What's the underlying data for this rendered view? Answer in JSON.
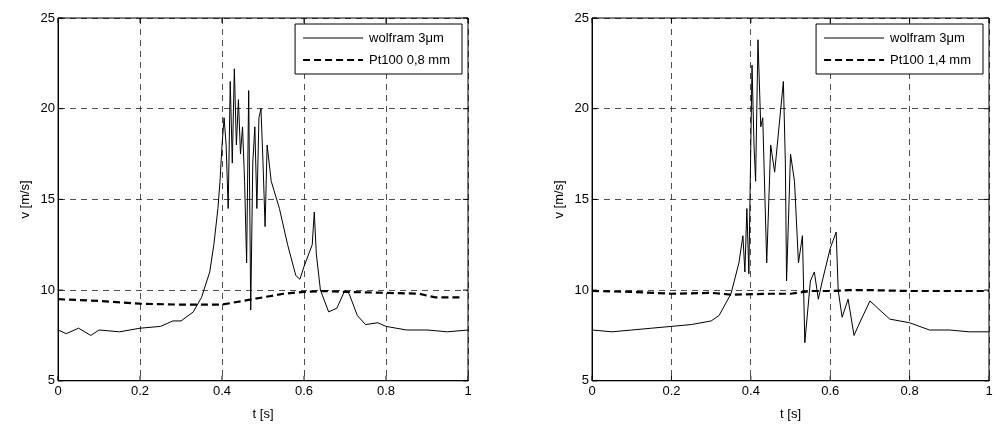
{
  "chart_data": [
    {
      "type": "line",
      "xlabel": "t [s]",
      "ylabel": "v [m/s]",
      "xlim": [
        0,
        1
      ],
      "ylim": [
        5,
        25
      ],
      "xticks": [
        0,
        0.2,
        0.4,
        0.6,
        0.8,
        1
      ],
      "yticks": [
        5,
        10,
        15,
        20,
        25
      ],
      "grid": true,
      "legend": "top right",
      "marker": "none",
      "series": [
        {
          "name": "wolfram 3μm",
          "color": "#000000",
          "line_style": "solid",
          "x": [
            0,
            0.02,
            0.05,
            0.08,
            0.1,
            0.15,
            0.2,
            0.25,
            0.28,
            0.3,
            0.33,
            0.35,
            0.37,
            0.38,
            0.39,
            0.395,
            0.4,
            0.405,
            0.41,
            0.415,
            0.42,
            0.425,
            0.43,
            0.435,
            0.44,
            0.445,
            0.45,
            0.455,
            0.46,
            0.465,
            0.47,
            0.475,
            0.48,
            0.485,
            0.49,
            0.495,
            0.5,
            0.505,
            0.51,
            0.52,
            0.54,
            0.56,
            0.58,
            0.59,
            0.6,
            0.62,
            0.625,
            0.63,
            0.64,
            0.66,
            0.68,
            0.7,
            0.71,
            0.73,
            0.75,
            0.78,
            0.8,
            0.85,
            0.9,
            0.95,
            1
          ],
          "values": [
            7.8,
            7.6,
            7.9,
            7.5,
            7.8,
            7.7,
            7.9,
            8,
            8.3,
            8.3,
            8.8,
            9.6,
            11,
            12.5,
            14.5,
            16,
            18,
            19.5,
            18,
            14.5,
            21.5,
            17,
            22.2,
            18,
            20.5,
            17.5,
            19,
            16,
            11.5,
            21,
            8.9,
            17,
            19,
            14.5,
            19.5,
            20,
            17,
            13.5,
            18,
            16,
            14.5,
            12.5,
            10.8,
            10.6,
            11.3,
            12.5,
            14.3,
            12,
            10,
            8.8,
            9,
            10,
            9.8,
            8.6,
            8.1,
            8.2,
            8,
            7.8,
            7.8,
            7.7,
            7.8
          ]
        },
        {
          "name": "Pt100 0,8 mm",
          "color": "#000000",
          "line_style": "dashed",
          "x": [
            0,
            0.1,
            0.2,
            0.3,
            0.4,
            0.45,
            0.5,
            0.55,
            0.6,
            0.65,
            0.7,
            0.8,
            0.88,
            0.92,
            0.98
          ],
          "values": [
            9.5,
            9.4,
            9.25,
            9.2,
            9.2,
            9.4,
            9.6,
            9.8,
            9.9,
            9.95,
            9.9,
            9.85,
            9.8,
            9.6,
            9.6
          ]
        }
      ]
    },
    {
      "type": "line",
      "xlabel": "t [s]",
      "ylabel": "v [m/s]",
      "xlim": [
        0,
        1
      ],
      "ylim": [
        5,
        25
      ],
      "xticks": [
        0,
        0.2,
        0.4,
        0.6,
        0.8,
        1
      ],
      "yticks": [
        5,
        10,
        15,
        20,
        25
      ],
      "grid": true,
      "legend": "top right",
      "marker": "none",
      "series": [
        {
          "name": "wolfram 3μm",
          "color": "#000000",
          "line_style": "solid",
          "x": [
            0,
            0.05,
            0.1,
            0.15,
            0.2,
            0.25,
            0.3,
            0.32,
            0.35,
            0.37,
            0.38,
            0.385,
            0.39,
            0.395,
            0.403,
            0.408,
            0.412,
            0.418,
            0.425,
            0.43,
            0.44,
            0.45,
            0.46,
            0.482,
            0.487,
            0.49,
            0.5,
            0.51,
            0.52,
            0.53,
            0.536,
            0.55,
            0.56,
            0.57,
            0.58,
            0.6,
            0.615,
            0.62,
            0.63,
            0.645,
            0.66,
            0.67,
            0.7,
            0.72,
            0.75,
            0.8,
            0.85,
            0.9,
            0.95,
            1
          ],
          "values": [
            7.8,
            7.7,
            7.8,
            7.9,
            8,
            8.1,
            8.3,
            8.6,
            9.8,
            11.5,
            13,
            11,
            14.5,
            10.9,
            22.4,
            18,
            16,
            23.8,
            19,
            19.5,
            11.5,
            18,
            16.5,
            21.5,
            17,
            10.5,
            17.5,
            16,
            11.5,
            13,
            7.1,
            10.5,
            11,
            9.5,
            10.5,
            12.3,
            13.2,
            10,
            8.5,
            9.5,
            7.5,
            8,
            9.4,
            9,
            8.4,
            8.2,
            7.8,
            7.8,
            7.7,
            7.7
          ]
        },
        {
          "name": "Pt100 1,4 mm",
          "color": "#000000",
          "line_style": "dashed",
          "x": [
            0,
            0.1,
            0.2,
            0.3,
            0.35,
            0.45,
            0.5,
            0.55,
            0.6,
            0.65,
            0.7,
            0.8,
            0.9,
            1
          ],
          "values": [
            9.95,
            9.9,
            9.8,
            9.85,
            9.75,
            9.8,
            9.8,
            9.95,
            9.95,
            10,
            10,
            9.95,
            9.95,
            9.95
          ]
        }
      ]
    }
  ]
}
